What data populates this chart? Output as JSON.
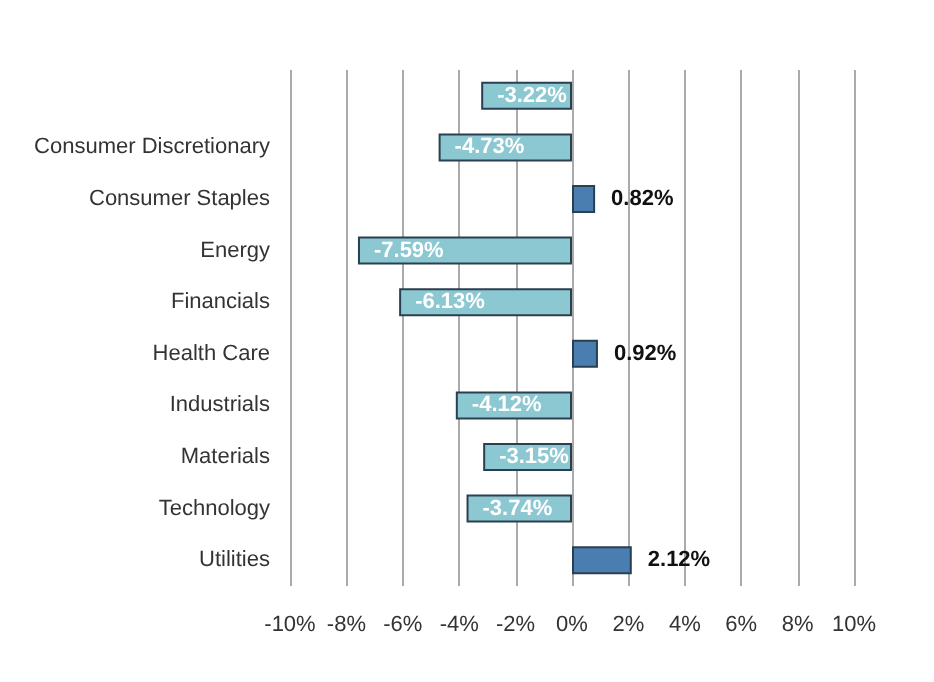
{
  "chart_data": {
    "type": "bar",
    "orientation": "horizontal",
    "categories": [
      null,
      "Consumer Discretionary",
      "Consumer Staples",
      "Energy",
      "Financials",
      "Health Care",
      "Industrials",
      "Materials",
      "Technology",
      "Utilities"
    ],
    "values": [
      -3.22,
      -4.73,
      0.82,
      -7.59,
      -6.13,
      0.92,
      -4.12,
      -3.15,
      -3.74,
      2.12
    ],
    "colors": [
      "#8cc8d2",
      "#8cc8d2",
      "#4a7db0",
      "#8cc8d2",
      "#8cc8d2",
      "#4a7db0",
      "#8cc8d2",
      "#8cc8d2",
      "#8cc8d2",
      "#4a7db0"
    ],
    "value_labels": [
      "-3.22%",
      "-4.73%",
      "0.82%",
      "-7.59%",
      "-6.13%",
      "0.92%",
      "-4.12%",
      "-3.15%",
      "-3.74%",
      "2.12%"
    ],
    "xlim": [
      -10,
      10
    ],
    "xticks": [
      {
        "value": -10,
        "label": "-10%"
      },
      {
        "value": -8,
        "label": "-8%"
      },
      {
        "value": -6,
        "label": "-6%"
      },
      {
        "value": -4,
        "label": "-4%"
      },
      {
        "value": -2,
        "label": "-2%"
      },
      {
        "value": 0,
        "label": "0%"
      },
      {
        "value": 2,
        "label": "2%"
      },
      {
        "value": 4,
        "label": "4%"
      },
      {
        "value": 6,
        "label": "6%"
      },
      {
        "value": 8,
        "label": "8%"
      },
      {
        "value": 10,
        "label": "10%"
      }
    ],
    "grid": "x"
  }
}
